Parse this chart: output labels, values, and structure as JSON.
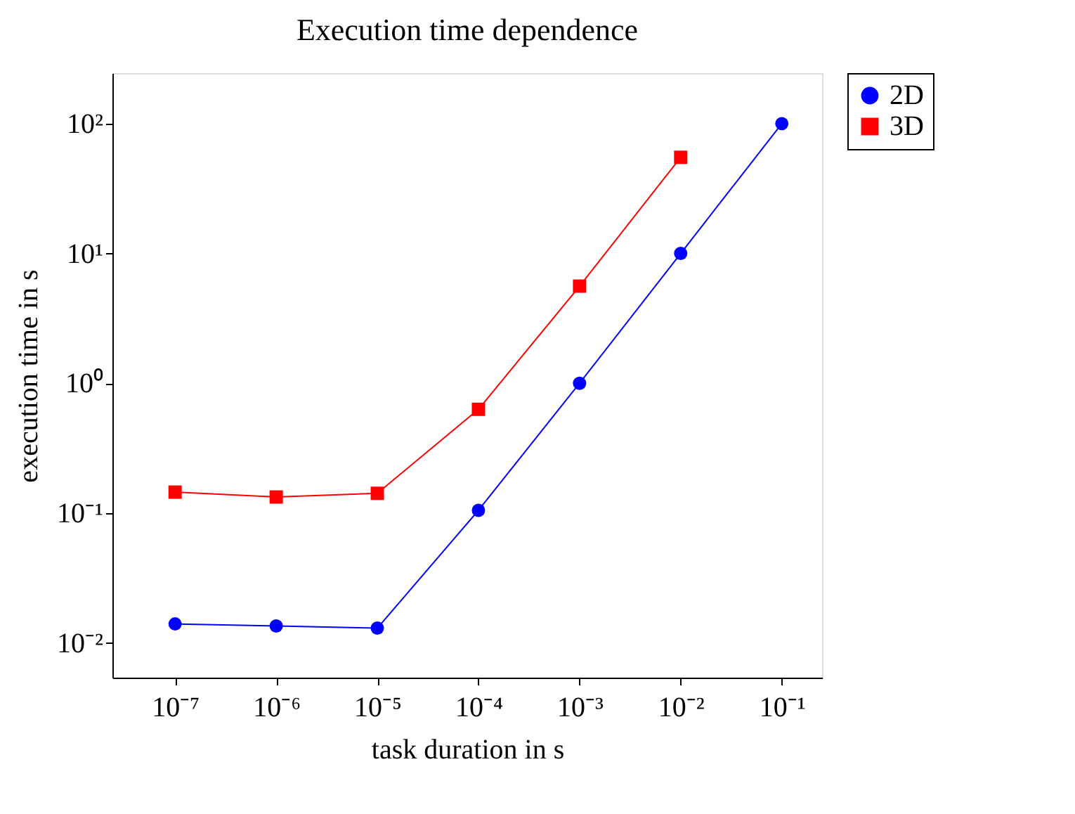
{
  "chart_data": {
    "type": "line",
    "title": "Execution time dependence",
    "xlabel": "task duration in s",
    "ylabel": "execution time in s",
    "x": [
      1e-07,
      1e-06,
      1e-05,
      0.0001,
      0.001,
      0.01,
      0.1
    ],
    "series": [
      {
        "name": "2D",
        "color": "#0000ff",
        "marker": "circle",
        "values": [
          0.014,
          0.0135,
          0.013,
          0.105,
          1,
          10,
          100
        ]
      },
      {
        "name": "3D",
        "color": "#ff0000",
        "marker": "square",
        "values": [
          0.145,
          0.133,
          0.142,
          0.63,
          5.6,
          55,
          null
        ]
      }
    ],
    "log": "xy",
    "grid": false,
    "legend": "top right",
    "line_style": "solid",
    "xlim": [
      2.4e-08,
      0.25
    ],
    "ylim": [
      0.0054,
      245
    ],
    "xticks": [
      {
        "value": 1e-07,
        "label": "10⁻⁷"
      },
      {
        "value": 1e-06,
        "label": "10⁻⁶"
      },
      {
        "value": 1e-05,
        "label": "10⁻⁵"
      },
      {
        "value": 0.0001,
        "label": "10⁻⁴"
      },
      {
        "value": 0.001,
        "label": "10⁻³"
      },
      {
        "value": 0.01,
        "label": "10⁻²"
      },
      {
        "value": 0.1,
        "label": "10⁻¹"
      }
    ],
    "yticks": [
      {
        "value": 0.01,
        "label": "10⁻²"
      },
      {
        "value": 0.1,
        "label": "10⁻¹"
      },
      {
        "value": 1,
        "label": "10⁰"
      },
      {
        "value": 10,
        "label": "10¹"
      },
      {
        "value": 100,
        "label": "10²"
      }
    ]
  }
}
